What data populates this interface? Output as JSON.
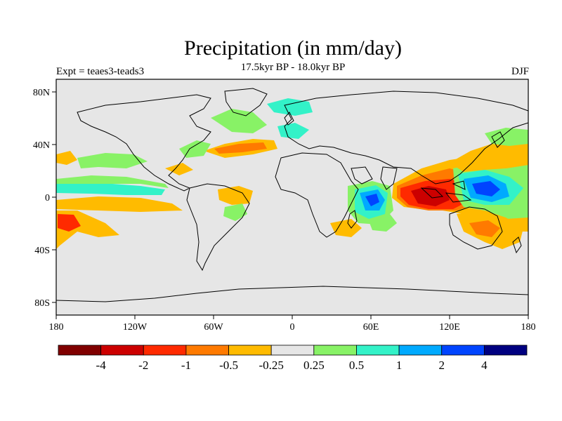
{
  "title": "Precipitation (in mm/day)",
  "subtitle": "17.5kyr BP - 18.0kyr BP",
  "left_label": "Expt = teaes3-teads3",
  "right_label": "DJF",
  "map": {
    "background_color": "#e6e6e6",
    "lat_labels": [
      "80N",
      "40N",
      "0",
      "40S",
      "80S"
    ],
    "lon_labels": [
      "180",
      "120W",
      "60W",
      "0",
      "60E",
      "120E",
      "180"
    ]
  },
  "colorbar": {
    "colors": [
      "#800000",
      "#cc0000",
      "#ff2a00",
      "#ff7a00",
      "#ffbb00",
      "#e6e6e6",
      "#88f266",
      "#33f2c8",
      "#00aaff",
      "#0044ff",
      "#000080"
    ],
    "labels": [
      "-4",
      "-2",
      "-1",
      "-0.5",
      "-0.25",
      "0.25",
      "0.5",
      "1",
      "2",
      "4"
    ]
  }
}
